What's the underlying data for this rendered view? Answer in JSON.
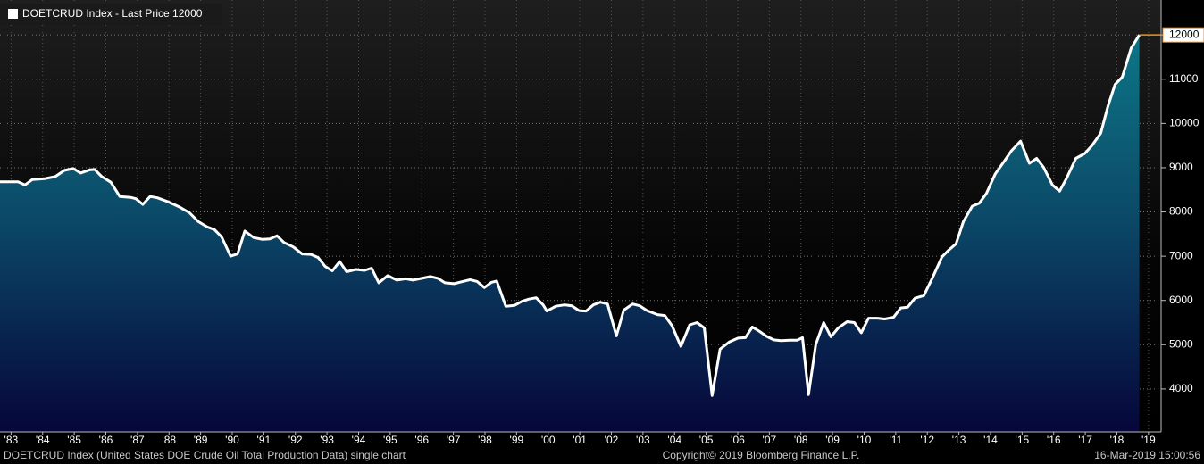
{
  "chart_data": {
    "type": "area",
    "legend": "top-left",
    "grid": true,
    "xlim": [
      1983.15,
      2019.9
    ],
    "ylim": [
      3030,
      12790
    ],
    "yticks": [
      4000,
      5000,
      6000,
      7000,
      8000,
      9000,
      10000,
      11000,
      12000
    ],
    "xticks": [
      {
        "value": 1983.5,
        "label": "'83"
      },
      {
        "value": 1984.5,
        "label": "'84"
      },
      {
        "value": 1985.5,
        "label": "'85"
      },
      {
        "value": 1986.5,
        "label": "'86"
      },
      {
        "value": 1987.5,
        "label": "'87"
      },
      {
        "value": 1988.5,
        "label": "'88"
      },
      {
        "value": 1989.5,
        "label": "'89"
      },
      {
        "value": 1990.5,
        "label": "'90"
      },
      {
        "value": 1991.5,
        "label": "'91"
      },
      {
        "value": 1992.5,
        "label": "'92"
      },
      {
        "value": 1993.5,
        "label": "'93"
      },
      {
        "value": 1994.5,
        "label": "'94"
      },
      {
        "value": 1995.5,
        "label": "'95"
      },
      {
        "value": 1996.5,
        "label": "'96"
      },
      {
        "value": 1997.5,
        "label": "'97"
      },
      {
        "value": 1998.5,
        "label": "'98"
      },
      {
        "value": 1999.5,
        "label": "'99"
      },
      {
        "value": 2000.5,
        "label": "'00"
      },
      {
        "value": 2001.5,
        "label": "'01"
      },
      {
        "value": 2002.5,
        "label": "'02"
      },
      {
        "value": 2003.5,
        "label": "'03"
      },
      {
        "value": 2004.5,
        "label": "'04"
      },
      {
        "value": 2005.5,
        "label": "'05"
      },
      {
        "value": 2006.5,
        "label": "'06"
      },
      {
        "value": 2007.5,
        "label": "'07"
      },
      {
        "value": 2008.5,
        "label": "'08"
      },
      {
        "value": 2009.5,
        "label": "'09"
      },
      {
        "value": 2010.5,
        "label": "'10"
      },
      {
        "value": 2011.5,
        "label": "'11"
      },
      {
        "value": 2012.5,
        "label": "'12"
      },
      {
        "value": 2013.5,
        "label": "'13"
      },
      {
        "value": 2014.5,
        "label": "'14"
      },
      {
        "value": 2015.5,
        "label": "'15"
      },
      {
        "value": 2016.5,
        "label": "'16"
      },
      {
        "value": 2017.5,
        "label": "'17"
      },
      {
        "value": 2018.5,
        "label": "'18"
      },
      {
        "value": 2019.5,
        "label": "'19"
      }
    ],
    "x": [
      1983.15,
      1983.72,
      1983.94,
      1984.17,
      1984.56,
      1984.9,
      1985.19,
      1985.47,
      1985.7,
      1985.98,
      1986.15,
      1986.37,
      1986.66,
      1986.94,
      1987.28,
      1987.45,
      1987.67,
      1987.9,
      1988.13,
      1988.47,
      1988.81,
      1989.15,
      1989.43,
      1989.71,
      1989.94,
      1990.16,
      1990.45,
      1990.67,
      1990.9,
      1991.18,
      1991.46,
      1991.69,
      1991.92,
      1992.14,
      1992.43,
      1992.71,
      1992.99,
      1993.22,
      1993.44,
      1993.67,
      1993.9,
      1994.12,
      1994.41,
      1994.69,
      1994.91,
      1995.14,
      1995.42,
      1995.71,
      1995.99,
      1996.22,
      1996.5,
      1996.78,
      1997.01,
      1997.23,
      1997.52,
      1997.74,
      1998.03,
      1998.25,
      1998.48,
      1998.7,
      1998.87,
      1999.16,
      1999.44,
      1999.67,
      1999.89,
      2000.12,
      2000.34,
      2000.46,
      2000.74,
      2001.02,
      2001.25,
      2001.48,
      2001.7,
      2001.93,
      2002.15,
      2002.38,
      2002.66,
      2002.89,
      2003.17,
      2003.4,
      2003.63,
      2003.96,
      2004.19,
      2004.42,
      2004.7,
      2004.98,
      2005.21,
      2005.44,
      2005.69,
      2005.94,
      2006.23,
      2006.51,
      2006.74,
      2006.96,
      2007.19,
      2007.41,
      2007.64,
      2007.87,
      2008.15,
      2008.38,
      2008.55,
      2008.74,
      2008.97,
      2009.22,
      2009.45,
      2009.68,
      2009.96,
      2010.19,
      2010.41,
      2010.64,
      2010.92,
      2011.15,
      2011.43,
      2011.66,
      2011.88,
      2012.11,
      2012.39,
      2012.67,
      2012.96,
      2013.18,
      2013.41,
      2013.64,
      2013.92,
      2014.15,
      2014.37,
      2014.65,
      2014.94,
      2015.16,
      2015.45,
      2015.73,
      2015.96,
      2016.18,
      2016.46,
      2016.69,
      2016.92,
      2017.2,
      2017.48,
      2017.71,
      2017.99,
      2018.22,
      2018.44,
      2018.67,
      2018.95,
      2019.21
    ],
    "series": [
      {
        "name": "DOETCRUD Index - Last Price 12000",
        "color": "#ffffff",
        "values": [
          8680,
          8680,
          8610,
          8730,
          8750,
          8800,
          8940,
          8980,
          8880,
          8950,
          8960,
          8800,
          8670,
          8350,
          8330,
          8300,
          8170,
          8350,
          8320,
          8230,
          8120,
          7980,
          7780,
          7660,
          7600,
          7440,
          7000,
          7050,
          7570,
          7420,
          7380,
          7390,
          7460,
          7310,
          7210,
          7050,
          7040,
          6970,
          6770,
          6670,
          6880,
          6650,
          6700,
          6680,
          6730,
          6400,
          6560,
          6460,
          6490,
          6460,
          6500,
          6540,
          6500,
          6400,
          6380,
          6420,
          6470,
          6430,
          6290,
          6410,
          6440,
          5870,
          5890,
          5980,
          6030,
          6060,
          5900,
          5760,
          5870,
          5900,
          5880,
          5770,
          5760,
          5900,
          5960,
          5920,
          5200,
          5780,
          5920,
          5880,
          5770,
          5680,
          5660,
          5430,
          4960,
          5450,
          5500,
          5380,
          3850,
          4900,
          5060,
          5150,
          5160,
          5400,
          5300,
          5190,
          5110,
          5090,
          5100,
          5100,
          5160,
          3870,
          5010,
          5500,
          5180,
          5380,
          5520,
          5500,
          5270,
          5600,
          5600,
          5580,
          5620,
          5830,
          5850,
          6050,
          6110,
          6520,
          6980,
          7140,
          7280,
          7780,
          8130,
          8200,
          8420,
          8860,
          9150,
          9380,
          9600,
          9100,
          9210,
          9010,
          8610,
          8470,
          8780,
          9210,
          9320,
          9500,
          9780,
          10400,
          10880,
          11050,
          11700,
          12000
        ]
      }
    ]
  },
  "footer": {
    "left": "DOETCRUD Index (United States DOE Crude Oil Total Production Data) single chart",
    "center": "Copyright© 2019 Bloomberg Finance L.P.",
    "right": "16-Mar-2019 15:00:56"
  }
}
